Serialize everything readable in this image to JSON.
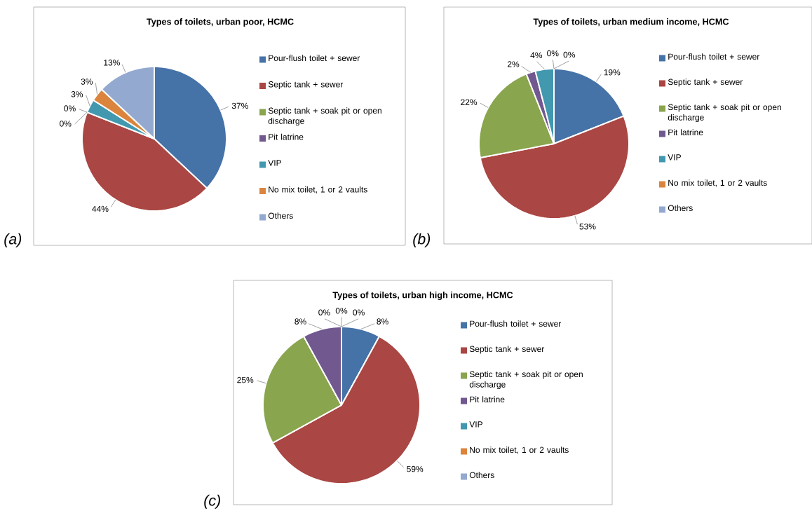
{
  "chart_data": [
    {
      "type": "pie",
      "title": "Types of toilets, urban poor, HCMC",
      "annotations": [
        "(a)"
      ],
      "legend": "right",
      "categories": [
        "Pour-flush toilet + sewer",
        "Septic tank + sewer",
        "Septic tank + soak pit or open discharge",
        "Pit latrine",
        "VIP",
        "No mix toilet, 1 or 2 vaults",
        "Others"
      ],
      "values": [
        37,
        44,
        0,
        0,
        3,
        3,
        13
      ],
      "value_labels": [
        "37%",
        "44%",
        "0%",
        "0%",
        "3%",
        "3%",
        "13%"
      ],
      "colors": [
        "#4572a7",
        "#aa4643",
        "#89a54e",
        "#71588f",
        "#4198af",
        "#db843d",
        "#93a9cf"
      ]
    },
    {
      "type": "pie",
      "title": "Types of toilets, urban medium income, HCMC",
      "annotations": [
        "(b)"
      ],
      "legend": "right",
      "categories": [
        "Pour-flush toilet + sewer",
        "Septic tank + sewer",
        "Septic tank + soak pit or open discharge",
        "Pit latrine",
        "VIP",
        "No mix toilet, 1 or 2 vaults",
        "Others"
      ],
      "values": [
        19,
        53,
        22,
        2,
        4,
        0,
        0
      ],
      "value_labels": [
        "19%",
        "53%",
        "22%",
        "2%",
        "4%",
        "0%",
        "0%"
      ],
      "colors": [
        "#4572a7",
        "#aa4643",
        "#89a54e",
        "#71588f",
        "#4198af",
        "#db843d",
        "#93a9cf"
      ]
    },
    {
      "type": "pie",
      "title": "Types of toilets, urban high income, HCMC",
      "annotations": [
        "(c)"
      ],
      "legend": "right",
      "categories": [
        "Pour-flush toilet + sewer",
        "Septic tank + sewer",
        "Septic tank + soak pit or open discharge",
        "Pit latrine",
        "VIP",
        "No mix toilet, 1 or 2 vaults",
        "Others"
      ],
      "values": [
        8,
        59,
        25,
        8,
        0,
        0,
        0
      ],
      "value_labels": [
        "8%",
        "59%",
        "25%",
        "8%",
        "0%",
        "0%",
        "0%"
      ],
      "colors": [
        "#4572a7",
        "#aa4643",
        "#89a54e",
        "#71588f",
        "#4198af",
        "#db843d",
        "#93a9cf"
      ]
    }
  ]
}
